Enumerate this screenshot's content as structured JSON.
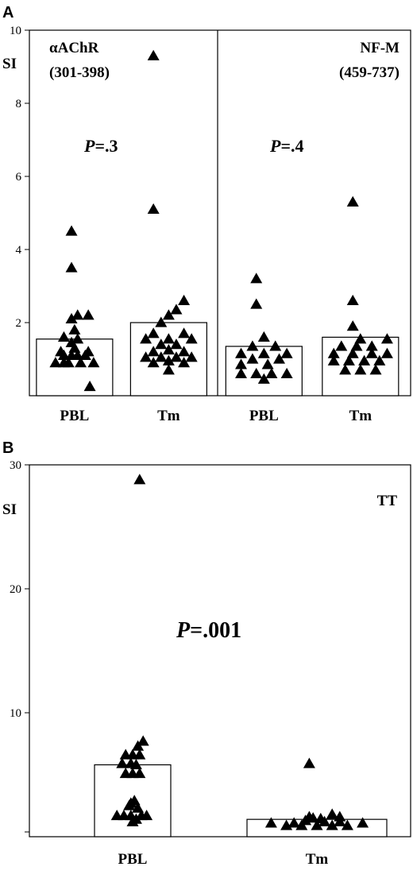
{
  "chart_data": [
    {
      "panel": "A",
      "type": "scatter",
      "ylabel": "SI",
      "ylim": [
        0,
        10
      ],
      "yticks": [
        2,
        4,
        6,
        8,
        10
      ],
      "subplots": [
        {
          "label_line1": "αAChR",
          "label_line2": "(301-398)",
          "p_prefix": "P",
          "p_value": "=.3",
          "categories": [
            "PBL",
            "Tm"
          ],
          "bars": [
            1.55,
            2.0
          ],
          "points": [
            [
              [
                0.2,
                0.25
              ],
              [
                -0.14,
                0.9
              ],
              [
                -0.25,
                0.9
              ],
              [
                -0.08,
                0.9
              ],
              [
                0.08,
                0.9
              ],
              [
                0.25,
                0.9
              ],
              [
                -0.14,
                1.1
              ],
              [
                0.14,
                1.1
              ],
              [
                -0.04,
                1.1
              ],
              [
                0.04,
                1.1
              ],
              [
                -0.18,
                1.2
              ],
              [
                0.0,
                1.3
              ],
              [
                0.18,
                1.2
              ],
              [
                -0.04,
                1.45
              ],
              [
                -0.14,
                1.6
              ],
              [
                0.04,
                1.55
              ],
              [
                0.0,
                1.8
              ],
              [
                -0.04,
                2.1
              ],
              [
                0.04,
                2.2
              ],
              [
                0.18,
                2.2
              ],
              [
                -0.04,
                3.5
              ],
              [
                -0.04,
                4.5
              ]
            ],
            [
              [
                0.0,
                0.7
              ],
              [
                -0.2,
                0.9
              ],
              [
                0.0,
                0.95
              ],
              [
                0.2,
                0.9
              ],
              [
                -0.3,
                1.05
              ],
              [
                -0.1,
                1.05
              ],
              [
                0.1,
                1.05
              ],
              [
                0.3,
                1.05
              ],
              [
                -0.2,
                1.2
              ],
              [
                0.0,
                1.25
              ],
              [
                0.2,
                1.2
              ],
              [
                -0.1,
                1.4
              ],
              [
                0.1,
                1.4
              ],
              [
                -0.3,
                1.55
              ],
              [
                0.0,
                1.55
              ],
              [
                0.3,
                1.55
              ],
              [
                -0.2,
                1.7
              ],
              [
                0.2,
                1.7
              ],
              [
                -0.1,
                2.0
              ],
              [
                0.0,
                2.2
              ],
              [
                0.1,
                2.35
              ],
              [
                0.2,
                2.6
              ],
              [
                -0.2,
                5.1
              ],
              [
                -0.2,
                9.3
              ]
            ]
          ]
        },
        {
          "label_line1": "NF-M",
          "label_line2": "(459-737)",
          "p_prefix": "P",
          "p_value": "=.4",
          "categories": [
            "PBL",
            "Tm"
          ],
          "bars": [
            1.35,
            1.6
          ],
          "points": [
            [
              [
                0.0,
                0.45
              ],
              [
                -0.3,
                0.6
              ],
              [
                -0.1,
                0.6
              ],
              [
                0.1,
                0.6
              ],
              [
                0.3,
                0.6
              ],
              [
                -0.3,
                0.85
              ],
              [
                0.05,
                0.85
              ],
              [
                -0.15,
                1.0
              ],
              [
                0.2,
                1.0
              ],
              [
                -0.3,
                1.15
              ],
              [
                0.0,
                1.15
              ],
              [
                0.3,
                1.15
              ],
              [
                -0.15,
                1.35
              ],
              [
                0.15,
                1.35
              ],
              [
                0.0,
                1.6
              ],
              [
                -0.1,
                2.5
              ],
              [
                -0.1,
                3.2
              ]
            ],
            [
              [
                -0.2,
                0.7
              ],
              [
                0.0,
                0.7
              ],
              [
                0.2,
                0.7
              ],
              [
                -0.35,
                0.95
              ],
              [
                -0.15,
                0.95
              ],
              [
                0.05,
                0.95
              ],
              [
                0.25,
                0.95
              ],
              [
                -0.35,
                1.15
              ],
              [
                -0.1,
                1.15
              ],
              [
                0.15,
                1.15
              ],
              [
                0.35,
                1.15
              ],
              [
                -0.25,
                1.35
              ],
              [
                -0.05,
                1.35
              ],
              [
                0.15,
                1.35
              ],
              [
                0.35,
                1.55
              ],
              [
                0.0,
                1.55
              ],
              [
                -0.1,
                1.9
              ],
              [
                -0.1,
                2.6
              ],
              [
                -0.1,
                5.3
              ]
            ]
          ]
        }
      ]
    },
    {
      "panel": "B",
      "type": "scatter",
      "ylabel": "SI",
      "ylim": [
        0,
        30
      ],
      "yticks": [
        10,
        20,
        30
      ],
      "label": "TT",
      "p_prefix": "P",
      "p_value": "=.001",
      "categories": [
        "PBL",
        "Tm"
      ],
      "bars": [
        5.8,
        1.4
      ],
      "points": [
        [
          [
            0.3,
            7.7
          ],
          [
            0.15,
            7.3
          ],
          [
            -0.2,
            6.6
          ],
          [
            0.0,
            6.6
          ],
          [
            0.2,
            6.6
          ],
          [
            -0.3,
            5.9
          ],
          [
            -0.05,
            5.9
          ],
          [
            0.1,
            5.8
          ],
          [
            -0.2,
            5.1
          ],
          [
            0.0,
            5.1
          ],
          [
            0.2,
            5.1
          ],
          [
            -0.05,
            2.7
          ],
          [
            0.05,
            2.9
          ],
          [
            -0.1,
            2.5
          ],
          [
            0.15,
            2.3
          ],
          [
            -0.45,
            1.7
          ],
          [
            -0.25,
            1.7
          ],
          [
            -0.05,
            1.7
          ],
          [
            0.25,
            1.7
          ],
          [
            0.4,
            1.7
          ],
          [
            0.1,
            1.4
          ],
          [
            0.0,
            1.2
          ],
          [
            0.2,
            28.8
          ]
        ],
        [
          [
            -0.6,
            1.1
          ],
          [
            -0.4,
            0.9
          ],
          [
            -0.2,
            0.9
          ],
          [
            0.0,
            0.9
          ],
          [
            0.2,
            0.9
          ],
          [
            0.4,
            0.9
          ],
          [
            0.6,
            1.1
          ],
          [
            -0.3,
            1.1
          ],
          [
            0.1,
            1.2
          ],
          [
            0.3,
            1.2
          ],
          [
            -0.15,
            1.3
          ],
          [
            0.05,
            1.45
          ],
          [
            -0.05,
            1.5
          ],
          [
            0.2,
            1.8
          ],
          [
            -0.1,
            1.6
          ],
          [
            0.3,
            1.6
          ],
          [
            -0.1,
            5.9
          ]
        ]
      ]
    }
  ]
}
